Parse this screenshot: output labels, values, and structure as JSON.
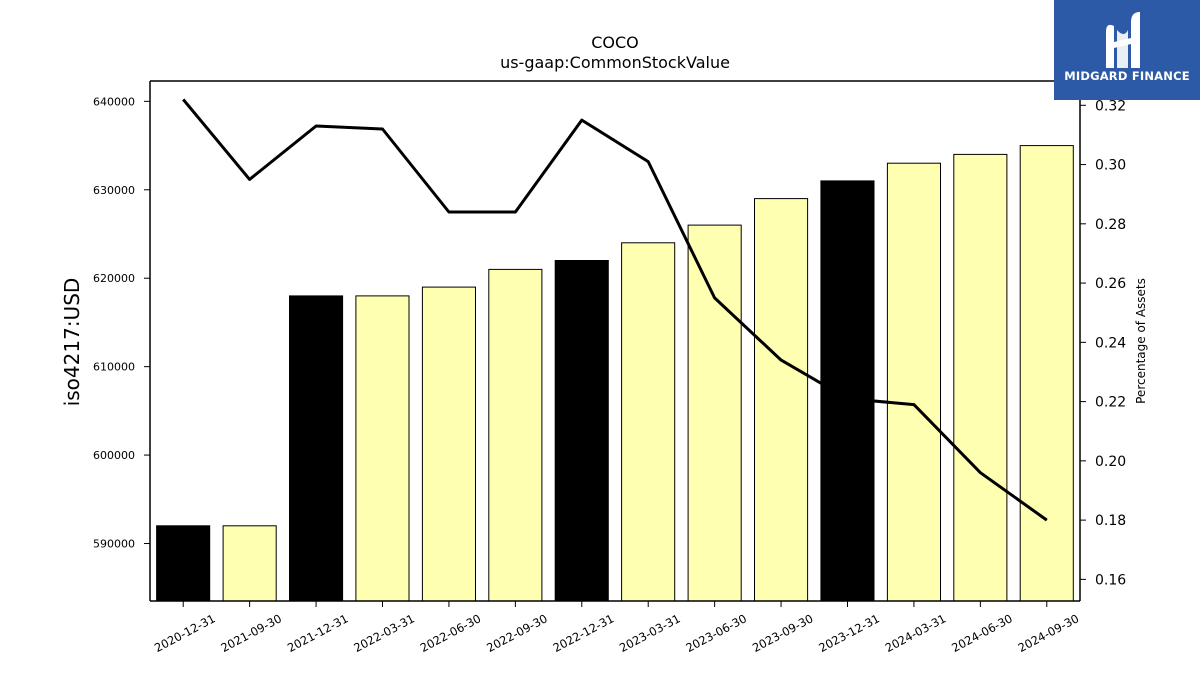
{
  "chart_data": {
    "type": "bar",
    "title": "COCO",
    "subtitle": "us-gaap:CommonStockValue",
    "ylabel": "iso4217:USD",
    "y2label": "Percentage of Assets",
    "categories": [
      "2020-12-31",
      "2021-09-30",
      "2021-12-31",
      "2022-03-31",
      "2022-06-30",
      "2022-09-30",
      "2022-12-31",
      "2023-03-31",
      "2023-06-30",
      "2023-09-30",
      "2023-12-31",
      "2024-03-31",
      "2024-06-30",
      "2024-09-30"
    ],
    "values": [
      592000,
      592000,
      618000,
      618000,
      619000,
      621000,
      622000,
      624000,
      626000,
      629000,
      631000,
      633000,
      634000,
      635000
    ],
    "highlight": [
      true,
      false,
      true,
      false,
      false,
      false,
      true,
      false,
      false,
      false,
      true,
      false,
      false,
      false
    ],
    "line_values": [
      0.322,
      0.295,
      0.313,
      0.312,
      0.284,
      0.284,
      0.315,
      0.301,
      0.255,
      0.234,
      0.221,
      0.219,
      0.196,
      0.18
    ],
    "ylim": [
      583500,
      642300
    ],
    "y2lim": [
      0.1527,
      0.3282
    ],
    "yticks": [
      "590000",
      "600000",
      "610000",
      "620000",
      "630000",
      "640000"
    ],
    "y2ticks": [
      "0.16",
      "0.18",
      "0.20",
      "0.22",
      "0.24",
      "0.26",
      "0.28",
      "0.30",
      "0.32"
    ],
    "colors": {
      "highlight_bar": "#000000",
      "normal_bar": "#ffffb2",
      "line": "#000000"
    }
  },
  "logo": {
    "text": "MIDGARD FINANCE",
    "background": "#2d5aa6"
  }
}
